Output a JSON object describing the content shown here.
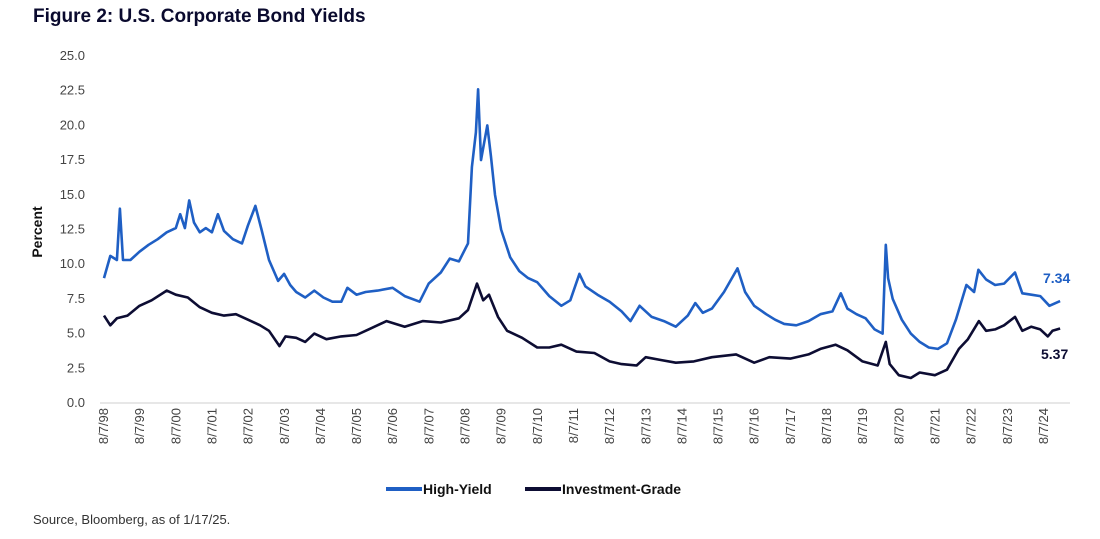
{
  "figure": {
    "title": "Figure 2: U.S. Corporate Bond Yields",
    "source": "Source, Bloomberg, as of 1/17/25."
  },
  "chart_data": {
    "type": "line",
    "title": "Figure 2: U.S. Corporate Bond Yields",
    "ylabel": "Percent",
    "xlabel": "",
    "ylim": [
      0,
      25
    ],
    "y_ticks": [
      "0.0",
      "2.5",
      "5.0",
      "7.5",
      "10.0",
      "12.5",
      "15.0",
      "17.5",
      "20.0",
      "22.5",
      "25.0"
    ],
    "x_ticks": [
      "8/7/98",
      "8/7/99",
      "8/7/00",
      "8/7/01",
      "8/7/02",
      "8/7/03",
      "8/7/04",
      "8/7/05",
      "8/7/06",
      "8/7/07",
      "8/7/08",
      "8/7/09",
      "8/7/10",
      "8/7/11",
      "8/7/12",
      "8/7/13",
      "8/7/14",
      "8/7/15",
      "8/7/16",
      "8/7/17",
      "8/7/18",
      "8/7/19",
      "8/7/20",
      "8/7/21",
      "8/7/22",
      "8/7/23",
      "8/7/24"
    ],
    "grid": false,
    "legend": "bottom",
    "series": [
      {
        "name": "High-Yield",
        "color": "#1f5fc4",
        "end_label": "7.34",
        "points": [
          [
            "1998-08-07",
            9.0
          ],
          [
            "1998-10-10",
            10.6
          ],
          [
            "1998-12-15",
            10.3
          ],
          [
            "1999-01-15",
            14.0
          ],
          [
            "1999-02-15",
            10.3
          ],
          [
            "1999-05-01",
            10.3
          ],
          [
            "1999-08-01",
            10.9
          ],
          [
            "1999-11-01",
            11.4
          ],
          [
            "2000-02-01",
            11.8
          ],
          [
            "2000-05-01",
            12.3
          ],
          [
            "2000-08-01",
            12.6
          ],
          [
            "2000-09-15",
            13.6
          ],
          [
            "2000-11-01",
            12.6
          ],
          [
            "2000-12-15",
            14.6
          ],
          [
            "2001-02-01",
            13.0
          ],
          [
            "2001-04-01",
            12.3
          ],
          [
            "2001-06-01",
            12.6
          ],
          [
            "2001-08-01",
            12.3
          ],
          [
            "2001-10-01",
            13.6
          ],
          [
            "2001-12-01",
            12.4
          ],
          [
            "2002-03-01",
            11.8
          ],
          [
            "2002-06-01",
            11.5
          ],
          [
            "2002-08-01",
            12.8
          ],
          [
            "2002-10-15",
            14.2
          ],
          [
            "2002-12-15",
            12.5
          ],
          [
            "2003-03-01",
            10.3
          ],
          [
            "2003-06-01",
            8.8
          ],
          [
            "2003-08-01",
            9.3
          ],
          [
            "2003-10-01",
            8.5
          ],
          [
            "2003-12-01",
            8.0
          ],
          [
            "2004-03-01",
            7.6
          ],
          [
            "2004-06-01",
            8.1
          ],
          [
            "2004-09-01",
            7.6
          ],
          [
            "2004-12-01",
            7.3
          ],
          [
            "2005-03-01",
            7.3
          ],
          [
            "2005-05-01",
            8.3
          ],
          [
            "2005-08-01",
            7.8
          ],
          [
            "2005-11-01",
            8.0
          ],
          [
            "2006-03-01",
            8.1
          ],
          [
            "2006-08-01",
            8.3
          ],
          [
            "2006-12-01",
            7.7
          ],
          [
            "2007-05-01",
            7.3
          ],
          [
            "2007-08-01",
            8.6
          ],
          [
            "2007-12-01",
            9.4
          ],
          [
            "2008-03-01",
            10.4
          ],
          [
            "2008-06-01",
            10.2
          ],
          [
            "2008-09-01",
            11.5
          ],
          [
            "2008-10-10",
            17.0
          ],
          [
            "2008-11-20",
            19.5
          ],
          [
            "2008-12-12",
            22.6
          ],
          [
            "2009-01-10",
            17.5
          ],
          [
            "2009-03-15",
            20.0
          ],
          [
            "2009-04-20",
            17.8
          ],
          [
            "2009-06-01",
            15.0
          ],
          [
            "2009-08-01",
            12.5
          ],
          [
            "2009-11-01",
            10.5
          ],
          [
            "2010-02-01",
            9.5
          ],
          [
            "2010-05-01",
            9.0
          ],
          [
            "2010-08-01",
            8.7
          ],
          [
            "2010-12-01",
            7.7
          ],
          [
            "2011-04-01",
            7.0
          ],
          [
            "2011-07-01",
            7.4
          ],
          [
            "2011-10-01",
            9.3
          ],
          [
            "2011-12-01",
            8.4
          ],
          [
            "2012-04-01",
            7.8
          ],
          [
            "2012-08-01",
            7.3
          ],
          [
            "2012-12-01",
            6.6
          ],
          [
            "2013-03-01",
            5.9
          ],
          [
            "2013-06-01",
            7.0
          ],
          [
            "2013-10-01",
            6.2
          ],
          [
            "2014-02-01",
            5.9
          ],
          [
            "2014-06-01",
            5.5
          ],
          [
            "2014-10-01",
            6.3
          ],
          [
            "2014-12-15",
            7.2
          ],
          [
            "2015-03-01",
            6.5
          ],
          [
            "2015-06-01",
            6.8
          ],
          [
            "2015-10-01",
            8.0
          ],
          [
            "2016-02-15",
            9.7
          ],
          [
            "2016-05-01",
            8.0
          ],
          [
            "2016-08-01",
            7.0
          ],
          [
            "2016-12-01",
            6.4
          ],
          [
            "2017-03-01",
            6.0
          ],
          [
            "2017-06-01",
            5.7
          ],
          [
            "2017-10-01",
            5.6
          ],
          [
            "2018-02-01",
            5.9
          ],
          [
            "2018-06-01",
            6.4
          ],
          [
            "2018-10-01",
            6.6
          ],
          [
            "2018-12-24",
            7.9
          ],
          [
            "2019-03-01",
            6.8
          ],
          [
            "2019-06-01",
            6.4
          ],
          [
            "2019-09-01",
            6.1
          ],
          [
            "2019-12-01",
            5.3
          ],
          [
            "2020-02-20",
            5.0
          ],
          [
            "2020-03-23",
            11.4
          ],
          [
            "2020-04-15",
            9.0
          ],
          [
            "2020-06-01",
            7.5
          ],
          [
            "2020-09-01",
            6.0
          ],
          [
            "2020-12-01",
            5.0
          ],
          [
            "2021-03-01",
            4.4
          ],
          [
            "2021-06-01",
            4.0
          ],
          [
            "2021-09-01",
            3.9
          ],
          [
            "2021-12-01",
            4.3
          ],
          [
            "2022-03-01",
            6.0
          ],
          [
            "2022-06-15",
            8.5
          ],
          [
            "2022-09-01",
            8.0
          ],
          [
            "2022-10-15",
            9.6
          ],
          [
            "2023-01-01",
            8.9
          ],
          [
            "2023-04-01",
            8.5
          ],
          [
            "2023-07-01",
            8.6
          ],
          [
            "2023-10-20",
            9.4
          ],
          [
            "2024-01-01",
            7.9
          ],
          [
            "2024-04-01",
            7.8
          ],
          [
            "2024-07-01",
            7.7
          ],
          [
            "2024-10-01",
            7.0
          ],
          [
            "2025-01-17",
            7.34
          ]
        ]
      },
      {
        "name": "Investment-Grade",
        "color": "#0d0d33",
        "end_label": "5.37",
        "points": [
          [
            "1998-08-07",
            6.3
          ],
          [
            "1998-10-10",
            5.6
          ],
          [
            "1998-12-15",
            6.1
          ],
          [
            "1999-04-01",
            6.3
          ],
          [
            "1999-08-01",
            7.0
          ],
          [
            "1999-12-01",
            7.4
          ],
          [
            "2000-05-01",
            8.1
          ],
          [
            "2000-08-01",
            7.8
          ],
          [
            "2000-12-01",
            7.6
          ],
          [
            "2001-04-01",
            6.9
          ],
          [
            "2001-08-01",
            6.5
          ],
          [
            "2001-12-01",
            6.3
          ],
          [
            "2002-04-01",
            6.4
          ],
          [
            "2002-08-01",
            6.0
          ],
          [
            "2002-12-01",
            5.6
          ],
          [
            "2003-03-01",
            5.2
          ],
          [
            "2003-06-15",
            4.1
          ],
          [
            "2003-08-15",
            4.8
          ],
          [
            "2003-12-01",
            4.7
          ],
          [
            "2004-03-01",
            4.4
          ],
          [
            "2004-06-01",
            5.0
          ],
          [
            "2004-10-01",
            4.6
          ],
          [
            "2005-03-01",
            4.8
          ],
          [
            "2005-08-01",
            4.9
          ],
          [
            "2005-12-01",
            5.3
          ],
          [
            "2006-06-01",
            5.9
          ],
          [
            "2006-12-01",
            5.5
          ],
          [
            "2007-06-01",
            5.9
          ],
          [
            "2007-12-01",
            5.8
          ],
          [
            "2008-06-01",
            6.1
          ],
          [
            "2008-09-01",
            6.7
          ],
          [
            "2008-12-01",
            8.6
          ],
          [
            "2009-02-01",
            7.4
          ],
          [
            "2009-04-01",
            7.8
          ],
          [
            "2009-07-01",
            6.2
          ],
          [
            "2009-10-01",
            5.2
          ],
          [
            "2010-03-01",
            4.7
          ],
          [
            "2010-08-01",
            4.0
          ],
          [
            "2010-12-01",
            4.0
          ],
          [
            "2011-04-01",
            4.2
          ],
          [
            "2011-09-01",
            3.7
          ],
          [
            "2012-03-01",
            3.6
          ],
          [
            "2012-08-01",
            3.0
          ],
          [
            "2012-12-01",
            2.8
          ],
          [
            "2013-05-01",
            2.7
          ],
          [
            "2013-08-01",
            3.3
          ],
          [
            "2014-01-01",
            3.1
          ],
          [
            "2014-06-01",
            2.9
          ],
          [
            "2014-12-01",
            3.0
          ],
          [
            "2015-06-01",
            3.3
          ],
          [
            "2016-02-01",
            3.5
          ],
          [
            "2016-08-01",
            2.9
          ],
          [
            "2017-01-01",
            3.3
          ],
          [
            "2017-08-01",
            3.2
          ],
          [
            "2018-02-01",
            3.5
          ],
          [
            "2018-06-01",
            3.9
          ],
          [
            "2018-11-01",
            4.2
          ],
          [
            "2019-03-01",
            3.8
          ],
          [
            "2019-08-01",
            3.0
          ],
          [
            "2020-01-01",
            2.7
          ],
          [
            "2020-03-23",
            4.4
          ],
          [
            "2020-05-01",
            2.8
          ],
          [
            "2020-08-01",
            2.0
          ],
          [
            "2020-12-01",
            1.8
          ],
          [
            "2021-03-01",
            2.2
          ],
          [
            "2021-08-01",
            2.0
          ],
          [
            "2021-12-01",
            2.4
          ],
          [
            "2022-04-01",
            3.9
          ],
          [
            "2022-07-01",
            4.6
          ],
          [
            "2022-10-20",
            5.9
          ],
          [
            "2023-01-01",
            5.2
          ],
          [
            "2023-04-01",
            5.3
          ],
          [
            "2023-07-01",
            5.6
          ],
          [
            "2023-10-20",
            6.2
          ],
          [
            "2024-01-01",
            5.2
          ],
          [
            "2024-04-01",
            5.5
          ],
          [
            "2024-07-01",
            5.3
          ],
          [
            "2024-09-15",
            4.8
          ],
          [
            "2024-11-01",
            5.2
          ],
          [
            "2025-01-17",
            5.37
          ]
        ]
      }
    ]
  }
}
